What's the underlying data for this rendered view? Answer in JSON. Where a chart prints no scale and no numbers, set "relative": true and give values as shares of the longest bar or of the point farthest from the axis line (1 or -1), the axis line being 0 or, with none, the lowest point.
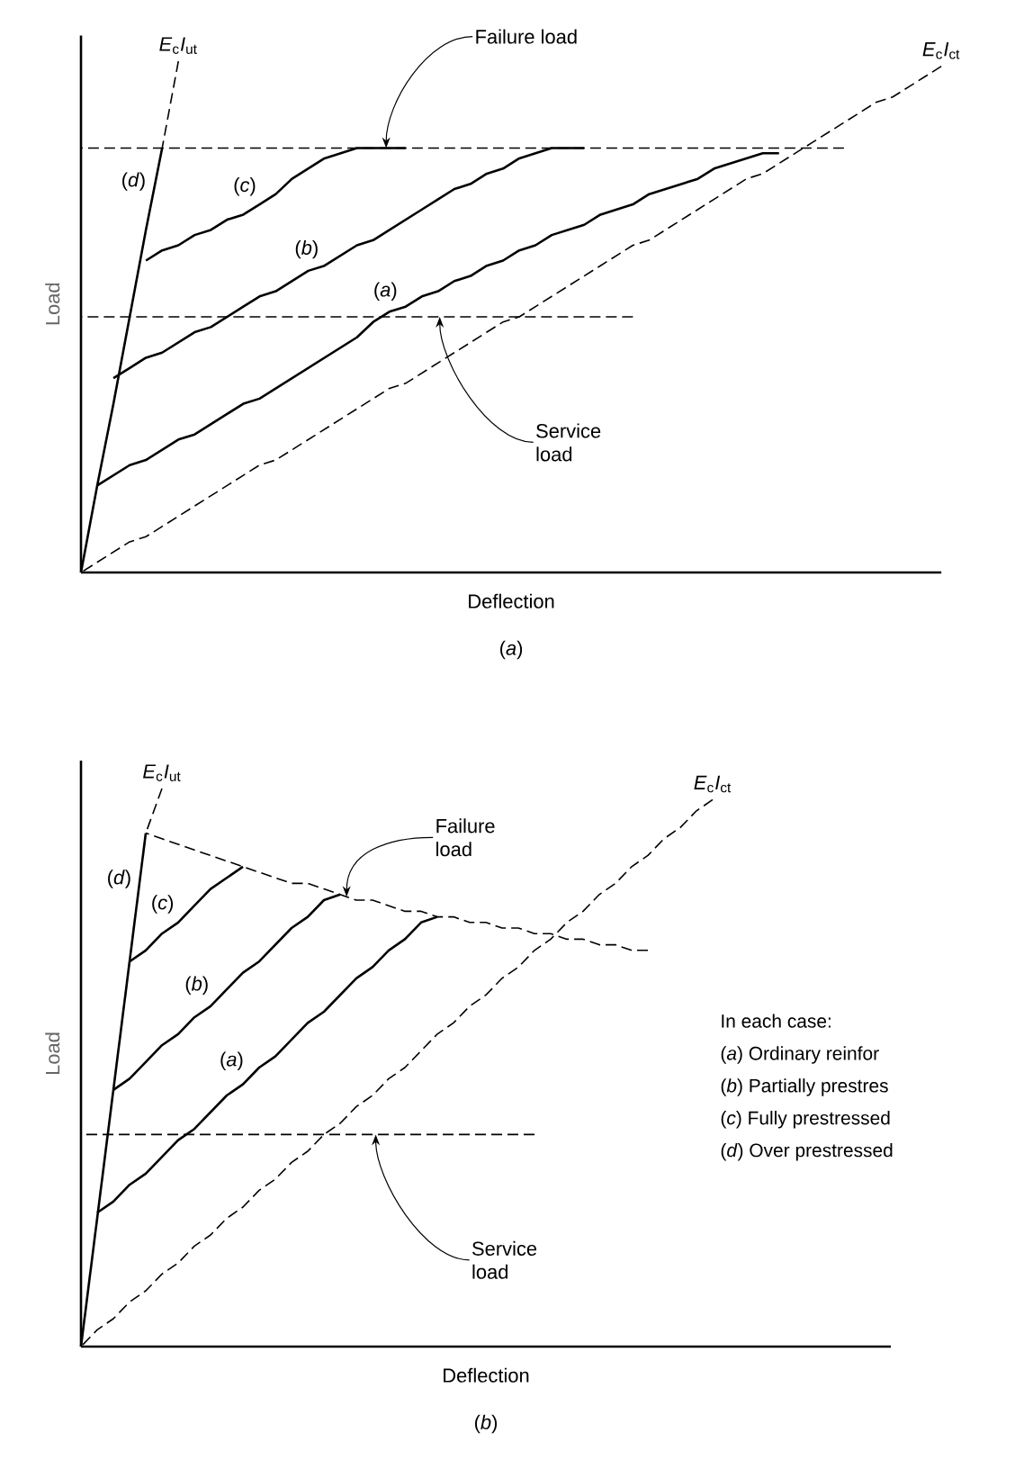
{
  "chart_data": [
    {
      "type": "line",
      "relative": true,
      "title": "(*a*)",
      "xlabel": "Deflection",
      "ylabel": "Load",
      "categories": [
        null,
        null,
        null,
        null,
        null,
        null,
        null,
        null,
        null,
        null,
        null,
        null,
        null,
        null,
        null,
        null,
        null,
        null,
        null,
        null,
        null,
        null,
        null,
        null,
        null,
        null,
        null,
        null,
        null,
        null,
        null,
        null,
        null,
        null,
        null,
        null,
        null,
        null,
        null,
        null,
        null,
        null,
        null,
        null,
        null,
        null,
        null,
        null,
        null,
        null,
        null,
        null,
        null,
        null
      ],
      "series": [
        {
          "name": "(*d*)",
          "color": "#000000",
          "line_style": "solid",
          "values": [
            0,
            0.17,
            0.33,
            0.5,
            0.67,
            0.83,
            null,
            null,
            null,
            null,
            null,
            null,
            null,
            null,
            null,
            null,
            null,
            null,
            null,
            null,
            null,
            null,
            null,
            null,
            null,
            null,
            null,
            null,
            null,
            null,
            null,
            null,
            null,
            null,
            null,
            null,
            null,
            null,
            null,
            null,
            null,
            null,
            null,
            null,
            null,
            null,
            null,
            null,
            null,
            null,
            null,
            null,
            null,
            null
          ]
        },
        {
          "name": "*E*$_{c}$*I*$_{ut}$",
          "color": "#000000",
          "line_style": "dashed",
          "values": [
            null,
            null,
            null,
            null,
            null,
            0.83,
            1.0,
            null,
            null,
            null,
            null,
            null,
            null,
            null,
            null,
            null,
            null,
            null,
            null,
            null,
            null,
            null,
            null,
            null,
            null,
            null,
            null,
            null,
            null,
            null,
            null,
            null,
            null,
            null,
            null,
            null,
            null,
            null,
            null,
            null,
            null,
            null,
            null,
            null,
            null,
            null,
            null,
            null,
            null,
            null,
            null,
            null,
            null,
            null
          ]
        },
        {
          "name": "*E*$_{c}$*I*$_{ct}$",
          "color": "#000000",
          "line_style": "dashed",
          "values": [
            0,
            0.02,
            0.04,
            0.06,
            0.07,
            0.09,
            0.11,
            0.13,
            0.15,
            0.17,
            0.19,
            0.21,
            0.22,
            0.24,
            0.26,
            0.28,
            0.3,
            0.32,
            0.34,
            0.36,
            0.37,
            0.39,
            0.41,
            0.43,
            0.45,
            0.47,
            0.49,
            0.5,
            0.52,
            0.54,
            0.56,
            0.58,
            0.6,
            0.62,
            0.64,
            0.65,
            0.67,
            0.69,
            0.71,
            0.73,
            0.75,
            0.77,
            0.78,
            0.8,
            0.82,
            0.84,
            0.86,
            0.88,
            0.9,
            0.92,
            0.93,
            0.95,
            0.97,
            0.99
          ]
        },
        {
          "name": "Failure load",
          "color": "#000000",
          "line_style": "dashed",
          "values": [
            0.83,
            0.83,
            0.83,
            0.83,
            0.83,
            0.83,
            0.83,
            0.83,
            0.83,
            0.83,
            0.83,
            0.83,
            0.83,
            0.83,
            0.83,
            0.83,
            0.83,
            0.83,
            0.83,
            0.83,
            0.83,
            0.83,
            0.83,
            0.83,
            0.83,
            0.83,
            0.83,
            0.83,
            0.83,
            0.83,
            0.83,
            0.83,
            0.83,
            0.83,
            0.83,
            0.83,
            0.83,
            0.83,
            0.83,
            0.83,
            0.83,
            0.83,
            0.83,
            0.83,
            0.83,
            0.83,
            0.83,
            0.83,
            null,
            null,
            null,
            null,
            null,
            null
          ]
        },
        {
          "name": "Service load",
          "color": "#000000",
          "line_style": "dashed",
          "values": [
            0.5,
            0.5,
            0.5,
            0.5,
            0.5,
            0.5,
            0.5,
            0.5,
            0.5,
            0.5,
            0.5,
            0.5,
            0.5,
            0.5,
            0.5,
            0.5,
            0.5,
            0.5,
            0.5,
            0.5,
            0.5,
            0.5,
            0.5,
            0.5,
            0.5,
            0.5,
            0.5,
            0.5,
            0.5,
            0.5,
            0.5,
            0.5,
            0.5,
            0.5,
            0.5,
            null,
            null,
            null,
            null,
            null,
            null,
            null,
            null,
            null,
            null,
            null,
            null,
            null,
            null,
            null,
            null,
            null,
            null,
            null
          ]
        },
        {
          "name": "(*c*)",
          "color": "#000000",
          "line_style": "solid",
          "values": [
            null,
            null,
            null,
            null,
            0.61,
            0.63,
            0.64,
            0.66,
            0.67,
            0.69,
            0.7,
            0.72,
            0.74,
            0.77,
            0.79,
            0.81,
            0.82,
            0.83,
            0.83,
            0.83,
            0.83,
            null,
            null,
            null,
            null,
            null,
            null,
            null,
            null,
            null,
            null,
            null,
            null,
            null,
            null,
            null,
            null,
            null,
            null,
            null,
            null,
            null,
            null,
            null,
            null,
            null,
            null,
            null,
            null,
            null,
            null,
            null,
            null,
            null
          ]
        },
        {
          "name": "(*b*)",
          "color": "#000000",
          "line_style": "solid",
          "values": [
            null,
            null,
            0.38,
            0.4,
            0.42,
            0.43,
            0.45,
            0.47,
            0.48,
            0.5,
            0.52,
            0.54,
            0.55,
            0.57,
            0.59,
            0.6,
            0.62,
            0.64,
            0.65,
            0.67,
            0.69,
            0.71,
            0.73,
            0.75,
            0.76,
            0.78,
            0.79,
            0.81,
            0.82,
            0.83,
            0.83,
            0.83,
            null,
            null,
            null,
            null,
            null,
            null,
            null,
            null,
            null,
            null,
            null,
            null,
            null,
            null,
            null,
            null,
            null,
            null,
            null,
            null,
            null,
            null
          ]
        },
        {
          "name": "(*a*)",
          "color": "#000000",
          "line_style": "solid",
          "values": [
            null,
            0.17,
            0.19,
            0.21,
            0.22,
            0.24,
            0.26,
            0.27,
            0.29,
            0.31,
            0.33,
            0.34,
            0.36,
            0.38,
            0.4,
            0.42,
            0.44,
            0.46,
            0.49,
            0.51,
            0.52,
            0.54,
            0.55,
            0.57,
            0.58,
            0.6,
            0.61,
            0.63,
            0.64,
            0.66,
            0.67,
            0.68,
            0.7,
            0.71,
            0.72,
            0.74,
            0.75,
            0.76,
            0.77,
            0.79,
            0.8,
            0.81,
            0.82,
            0.82,
            null,
            null,
            null,
            null,
            null,
            null,
            null,
            null,
            null,
            null
          ]
        }
      ]
    },
    {
      "type": "line",
      "relative": true,
      "title": "(*b*)",
      "xlabel": "Deflection",
      "ylabel": "Load",
      "categories": [
        null,
        null,
        null,
        null,
        null,
        null,
        null,
        null,
        null,
        null,
        null,
        null,
        null,
        null,
        null,
        null,
        null,
        null,
        null,
        null,
        null,
        null,
        null,
        null,
        null,
        null,
        null,
        null,
        null,
        null,
        null,
        null,
        null,
        null,
        null,
        null,
        null,
        null,
        null,
        null,
        null,
        null,
        null,
        null,
        null,
        null,
        null,
        null,
        null,
        null,
        null
      ],
      "series": [
        {
          "name": "(*d*)",
          "color": "#000000",
          "line_style": "solid",
          "values": [
            0,
            0.23,
            0.46,
            0.69,
            0.92,
            null,
            null,
            null,
            null,
            null,
            null,
            null,
            null,
            null,
            null,
            null,
            null,
            null,
            null,
            null,
            null,
            null,
            null,
            null,
            null,
            null,
            null,
            null,
            null,
            null,
            null,
            null,
            null,
            null,
            null,
            null,
            null,
            null,
            null,
            null,
            null,
            null,
            null,
            null,
            null,
            null,
            null,
            null,
            null,
            null,
            null
          ]
        },
        {
          "name": "*E*$_{c}$*I*$_{ut}$",
          "color": "#000000",
          "line_style": "dashed",
          "values": [
            null,
            null,
            null,
            null,
            0.92,
            1.0,
            null,
            null,
            null,
            null,
            null,
            null,
            null,
            null,
            null,
            null,
            null,
            null,
            null,
            null,
            null,
            null,
            null,
            null,
            null,
            null,
            null,
            null,
            null,
            null,
            null,
            null,
            null,
            null,
            null,
            null,
            null,
            null,
            null,
            null,
            null,
            null,
            null,
            null,
            null,
            null,
            null,
            null,
            null,
            null,
            null
          ]
        },
        {
          "name": "*E*$_{c}$*I*$_{ct}$",
          "color": "#000000",
          "line_style": "dashed",
          "values": [
            0,
            0.03,
            0.05,
            0.08,
            0.1,
            0.13,
            0.15,
            0.18,
            0.2,
            0.23,
            0.25,
            0.28,
            0.3,
            0.33,
            0.35,
            0.38,
            0.4,
            0.43,
            0.45,
            0.48,
            0.5,
            0.53,
            0.56,
            0.58,
            0.61,
            0.63,
            0.66,
            0.68,
            0.71,
            0.73,
            0.76,
            0.78,
            0.81,
            0.83,
            0.86,
            0.88,
            0.91,
            0.93,
            0.96,
            0.98,
            null,
            null,
            null,
            null,
            null,
            null,
            null,
            null,
            null,
            null,
            null
          ]
        },
        {
          "name": "Failure load",
          "color": "#000000",
          "line_style": "dashed",
          "values": [
            null,
            null,
            null,
            null,
            0.92,
            0.91,
            0.9,
            0.89,
            0.88,
            0.87,
            0.86,
            0.85,
            0.84,
            0.83,
            0.83,
            0.82,
            0.81,
            0.8,
            0.8,
            0.79,
            0.78,
            0.78,
            0.77,
            0.77,
            0.76,
            0.76,
            0.75,
            0.75,
            0.74,
            0.74,
            0.73,
            0.73,
            0.72,
            0.72,
            0.71,
            0.71,
            null,
            null,
            null,
            null,
            null,
            null,
            null,
            null,
            null,
            null,
            null,
            null,
            null,
            null,
            null
          ]
        },
        {
          "name": "Service load",
          "color": "#000000",
          "line_style": "dashed",
          "values": [
            0.38,
            0.38,
            0.38,
            0.38,
            0.38,
            0.38,
            0.38,
            0.38,
            0.38,
            0.38,
            0.38,
            0.38,
            0.38,
            0.38,
            0.38,
            0.38,
            0.38,
            0.38,
            0.38,
            0.38,
            0.38,
            0.38,
            0.38,
            0.38,
            0.38,
            0.38,
            0.38,
            0.38,
            0.38,
            null,
            null,
            null,
            null,
            null,
            null,
            null,
            null,
            null,
            null,
            null,
            null,
            null,
            null,
            null,
            null,
            null,
            null,
            null,
            null,
            null,
            null
          ]
        },
        {
          "name": "(*c*)",
          "color": "#000000",
          "line_style": "solid",
          "values": [
            null,
            null,
            null,
            0.69,
            0.71,
            0.74,
            0.76,
            0.79,
            0.82,
            0.84,
            0.86,
            null,
            null,
            null,
            null,
            null,
            null,
            null,
            null,
            null,
            null,
            null,
            null,
            null,
            null,
            null,
            null,
            null,
            null,
            null,
            null,
            null,
            null,
            null,
            null,
            null,
            null,
            null,
            null,
            null,
            null,
            null,
            null,
            null,
            null,
            null,
            null,
            null,
            null,
            null,
            null
          ]
        },
        {
          "name": "(*b*)",
          "color": "#000000",
          "line_style": "solid",
          "values": [
            null,
            null,
            0.46,
            0.48,
            0.51,
            0.54,
            0.56,
            0.59,
            0.61,
            0.64,
            0.67,
            0.69,
            0.72,
            0.75,
            0.77,
            0.8,
            0.81,
            null,
            null,
            null,
            null,
            null,
            null,
            null,
            null,
            null,
            null,
            null,
            null,
            null,
            null,
            null,
            null,
            null,
            null,
            null,
            null,
            null,
            null,
            null,
            null,
            null,
            null,
            null,
            null,
            null,
            null,
            null,
            null,
            null,
            null
          ]
        },
        {
          "name": "(*a*)",
          "color": "#000000",
          "line_style": "solid",
          "values": [
            null,
            0.24,
            0.26,
            0.29,
            0.31,
            0.34,
            0.37,
            0.39,
            0.42,
            0.45,
            0.47,
            0.5,
            0.52,
            0.55,
            0.58,
            0.6,
            0.63,
            0.66,
            0.68,
            0.71,
            0.73,
            0.76,
            0.77,
            null,
            null,
            null,
            null,
            null,
            null,
            null,
            null,
            null,
            null,
            null,
            null,
            null,
            null,
            null,
            null,
            null,
            null,
            null,
            null,
            null,
            null,
            null,
            null,
            null,
            null,
            null,
            null
          ]
        }
      ],
      "annotations": [
        "In each case:",
        "(*a*) Ordinary reinfor",
        "(*b*) Partially prestres",
        "(*c*) Fully prestressed",
        "(*d*) Over prestressed"
      ]
    }
  ]
}
